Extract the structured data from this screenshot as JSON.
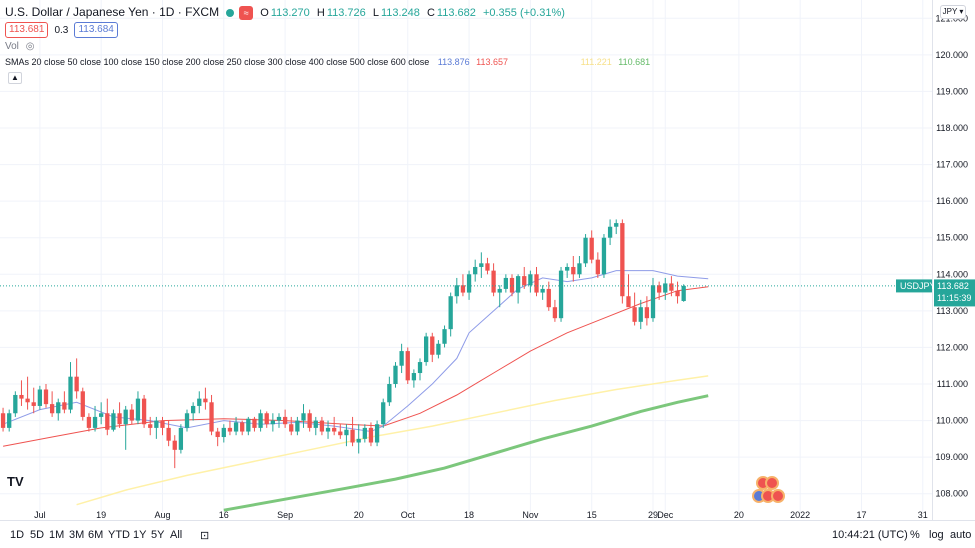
{
  "legend": {
    "symbol_title": "U.S. Dollar / Japanese Yen · 1D · FXCM",
    "ohlc": {
      "o_label": "O",
      "o": "113.270",
      "h_label": "H",
      "h": "113.726",
      "l_label": "L",
      "l": "113.248",
      "c_label": "C",
      "c": "113.682",
      "change": "+0.355 (+0.31%)"
    },
    "bid": "113.681",
    "spread": "0.3",
    "ask": "113.684",
    "vol_label": "Vol",
    "sma_label": "SMAs 20 close 50 close 100 close 150 close 200 close 250 close 300 close 400 close 500 close 600 close",
    "sma_values": [
      {
        "value": "113.876",
        "color": "#5b7bd5"
      },
      {
        "value": "113.657",
        "color": "#ef5350"
      },
      {
        "value": "111.221",
        "color": "#f7e08a"
      },
      {
        "value": "110.681",
        "color": "#66bb6a"
      }
    ]
  },
  "currency_button": "JPY",
  "last_price_tag": {
    "symbol": "USDJPY",
    "price": "113.682",
    "countdown": "11:15:39"
  },
  "toolbar": {
    "timeframes": [
      "1D",
      "5D",
      "1M",
      "3M",
      "6M",
      "YTD",
      "1Y",
      "5Y",
      "All"
    ],
    "clock": "10:44:21 (UTC)",
    "percent": "%",
    "log": "log",
    "auto": "auto"
  },
  "colors": {
    "up": "#26a69a",
    "down": "#ef5350",
    "sma20": "#8f9ce8",
    "sma50": "#ef5350",
    "sma100": "#fff1a8",
    "sma200": "#7cc77c"
  },
  "chart_data": {
    "type": "candlestick",
    "symbol": "USDJPY",
    "ylim": [
      107.5,
      121.5
    ],
    "y_ticks": [
      "108.000",
      "109.000",
      "110.000",
      "111.000",
      "112.000",
      "113.000",
      "114.000",
      "115.000",
      "116.000",
      "117.000",
      "118.000",
      "119.000",
      "120.000",
      "121.000"
    ],
    "x_tick_labels": [
      {
        "label": "Jul",
        "bar": 6
      },
      {
        "label": "19",
        "bar": 16
      },
      {
        "label": "Aug",
        "bar": 26
      },
      {
        "label": "16",
        "bar": 36
      },
      {
        "label": "Sep",
        "bar": 46
      },
      {
        "label": "20",
        "bar": 58
      },
      {
        "label": "Oct",
        "bar": 66
      },
      {
        "label": "18",
        "bar": 76
      },
      {
        "label": "Nov",
        "bar": 86
      },
      {
        "label": "15",
        "bar": 96
      },
      {
        "label": "29",
        "bar": 106
      },
      {
        "label": "Dec",
        "bar": 108
      },
      {
        "label": "20",
        "bar": 120
      },
      {
        "label": "2022",
        "bar": 130
      },
      {
        "label": "17",
        "bar": 140
      },
      {
        "label": "31",
        "bar": 150
      }
    ],
    "total_slots": 152,
    "last_price": 113.682,
    "candles": [
      [
        110.2,
        110.35,
        109.7,
        109.8
      ],
      [
        109.8,
        110.3,
        109.7,
        110.2
      ],
      [
        110.2,
        110.8,
        110.1,
        110.7
      ],
      [
        110.7,
        111.1,
        110.4,
        110.6
      ],
      [
        110.6,
        111.2,
        110.3,
        110.5
      ],
      [
        110.5,
        110.9,
        110.2,
        110.4
      ],
      [
        110.4,
        110.95,
        110.3,
        110.85
      ],
      [
        110.85,
        111.0,
        110.35,
        110.45
      ],
      [
        110.45,
        110.8,
        110.1,
        110.2
      ],
      [
        110.2,
        110.6,
        110.0,
        110.5
      ],
      [
        110.5,
        110.8,
        110.2,
        110.3
      ],
      [
        110.3,
        111.6,
        110.2,
        111.2
      ],
      [
        111.2,
        111.7,
        110.6,
        110.8
      ],
      [
        110.8,
        110.9,
        110.0,
        110.1
      ],
      [
        110.1,
        110.2,
        109.7,
        109.8
      ],
      [
        109.8,
        110.4,
        109.7,
        110.1
      ],
      [
        110.1,
        110.5,
        109.9,
        110.2
      ],
      [
        110.2,
        110.6,
        109.6,
        109.75
      ],
      [
        109.75,
        110.3,
        109.7,
        110.2
      ],
      [
        110.2,
        110.5,
        109.8,
        109.9
      ],
      [
        109.9,
        110.4,
        109.2,
        110.3
      ],
      [
        110.3,
        110.45,
        109.9,
        110.0
      ],
      [
        110.0,
        110.8,
        109.9,
        110.6
      ],
      [
        110.6,
        110.7,
        109.8,
        109.9
      ],
      [
        109.9,
        110.1,
        109.6,
        109.8
      ],
      [
        109.8,
        110.1,
        109.5,
        110.0
      ],
      [
        110.0,
        110.1,
        109.6,
        109.8
      ],
      [
        109.8,
        110.0,
        109.3,
        109.45
      ],
      [
        109.45,
        109.6,
        108.7,
        109.2
      ],
      [
        109.2,
        109.9,
        109.1,
        109.8
      ],
      [
        109.8,
        110.3,
        109.7,
        110.2
      ],
      [
        110.2,
        110.5,
        110.0,
        110.4
      ],
      [
        110.4,
        110.8,
        110.2,
        110.6
      ],
      [
        110.6,
        110.9,
        110.3,
        110.5
      ],
      [
        110.5,
        110.7,
        109.6,
        109.7
      ],
      [
        109.7,
        109.8,
        109.3,
        109.55
      ],
      [
        109.55,
        109.9,
        109.4,
        109.8
      ],
      [
        109.8,
        110.0,
        109.6,
        109.7
      ],
      [
        109.7,
        110.1,
        109.6,
        109.95
      ],
      [
        109.95,
        110.0,
        109.6,
        109.7
      ],
      [
        109.7,
        110.1,
        109.6,
        110.05
      ],
      [
        110.05,
        110.1,
        109.7,
        109.8
      ],
      [
        109.8,
        110.3,
        109.7,
        110.2
      ],
      [
        110.2,
        110.25,
        109.8,
        109.9
      ],
      [
        109.9,
        110.2,
        109.7,
        110.0
      ],
      [
        110.0,
        110.2,
        109.8,
        110.1
      ],
      [
        110.1,
        110.3,
        109.8,
        109.9
      ],
      [
        109.9,
        110.1,
        109.6,
        109.7
      ],
      [
        109.7,
        110.1,
        109.6,
        110.0
      ],
      [
        110.0,
        110.45,
        109.8,
        110.2
      ],
      [
        110.2,
        110.3,
        109.7,
        109.8
      ],
      [
        109.8,
        110.1,
        109.6,
        110.0
      ],
      [
        110.0,
        110.1,
        109.6,
        109.7
      ],
      [
        109.7,
        110.0,
        109.5,
        109.8
      ],
      [
        109.8,
        110.1,
        109.6,
        109.7
      ],
      [
        109.7,
        109.9,
        109.5,
        109.6
      ],
      [
        109.6,
        109.9,
        109.3,
        109.75
      ],
      [
        109.75,
        110.1,
        109.3,
        109.4
      ],
      [
        109.4,
        109.9,
        109.1,
        109.5
      ],
      [
        109.5,
        109.9,
        109.4,
        109.8
      ],
      [
        109.8,
        109.95,
        109.3,
        109.4
      ],
      [
        109.4,
        110.0,
        109.3,
        109.9
      ],
      [
        109.9,
        110.6,
        109.8,
        110.5
      ],
      [
        110.5,
        111.2,
        110.4,
        111.0
      ],
      [
        111.0,
        111.6,
        110.9,
        111.5
      ],
      [
        111.5,
        112.1,
        111.3,
        111.9
      ],
      [
        111.9,
        112.0,
        111.0,
        111.1
      ],
      [
        111.1,
        111.4,
        110.9,
        111.3
      ],
      [
        111.3,
        111.7,
        111.1,
        111.6
      ],
      [
        111.6,
        112.4,
        111.5,
        112.3
      ],
      [
        112.3,
        112.4,
        111.6,
        111.8
      ],
      [
        111.8,
        112.2,
        111.7,
        112.1
      ],
      [
        112.1,
        112.6,
        112.0,
        112.5
      ],
      [
        112.5,
        113.5,
        112.3,
        113.4
      ],
      [
        113.4,
        113.9,
        113.2,
        113.7
      ],
      [
        113.7,
        114.0,
        113.4,
        113.5
      ],
      [
        113.5,
        114.1,
        113.3,
        114.0
      ],
      [
        114.0,
        114.4,
        113.8,
        114.2
      ],
      [
        114.2,
        114.6,
        113.9,
        114.3
      ],
      [
        114.3,
        114.45,
        114.0,
        114.1
      ],
      [
        114.1,
        114.3,
        113.4,
        113.5
      ],
      [
        113.5,
        113.7,
        113.1,
        113.6
      ],
      [
        113.6,
        114.0,
        113.5,
        113.9
      ],
      [
        113.9,
        114.0,
        113.4,
        113.5
      ],
      [
        113.5,
        114.0,
        113.2,
        113.95
      ],
      [
        113.95,
        114.2,
        113.6,
        113.7
      ],
      [
        113.7,
        114.1,
        113.5,
        114.0
      ],
      [
        114.0,
        114.2,
        113.4,
        113.5
      ],
      [
        113.5,
        113.7,
        113.3,
        113.6
      ],
      [
        113.6,
        113.8,
        113.0,
        113.1
      ],
      [
        113.1,
        113.3,
        112.7,
        112.8
      ],
      [
        112.8,
        114.2,
        112.7,
        114.1
      ],
      [
        114.1,
        114.3,
        113.9,
        114.2
      ],
      [
        114.2,
        114.5,
        113.8,
        114.0
      ],
      [
        114.0,
        114.5,
        113.9,
        114.3
      ],
      [
        114.3,
        115.1,
        114.2,
        115.0
      ],
      [
        115.0,
        115.2,
        114.3,
        114.4
      ],
      [
        114.4,
        114.6,
        113.9,
        114.0
      ],
      [
        114.0,
        115.1,
        113.9,
        115.0
      ],
      [
        115.0,
        115.5,
        114.8,
        115.3
      ],
      [
        115.3,
        115.5,
        115.1,
        115.4
      ],
      [
        115.4,
        115.5,
        113.2,
        113.4
      ],
      [
        113.4,
        114.0,
        113.2,
        113.1
      ],
      [
        113.1,
        113.5,
        112.6,
        112.7
      ],
      [
        112.7,
        113.3,
        112.5,
        113.1
      ],
      [
        113.1,
        113.4,
        112.6,
        112.8
      ],
      [
        112.8,
        113.9,
        112.7,
        113.7
      ],
      [
        113.7,
        113.8,
        113.3,
        113.5
      ],
      [
        113.5,
        113.9,
        113.3,
        113.75
      ],
      [
        113.75,
        113.95,
        113.4,
        113.55
      ],
      [
        113.55,
        113.8,
        113.2,
        113.4
      ],
      [
        113.27,
        113.726,
        113.248,
        113.682
      ]
    ],
    "sma20": [
      [
        0,
        109.9
      ],
      [
        6,
        110.3
      ],
      [
        12,
        110.5
      ],
      [
        18,
        110.1
      ],
      [
        24,
        110.0
      ],
      [
        30,
        109.8
      ],
      [
        36,
        110.0
      ],
      [
        42,
        109.9
      ],
      [
        48,
        109.95
      ],
      [
        54,
        109.85
      ],
      [
        60,
        109.7
      ],
      [
        62,
        109.85
      ],
      [
        66,
        110.4
      ],
      [
        70,
        111.0
      ],
      [
        74,
        111.7
      ],
      [
        76,
        112.4
      ],
      [
        80,
        113.0
      ],
      [
        84,
        113.6
      ],
      [
        88,
        113.9
      ],
      [
        92,
        113.8
      ],
      [
        96,
        113.9
      ],
      [
        100,
        114.1
      ],
      [
        104,
        114.1
      ],
      [
        106,
        114.1
      ],
      [
        110,
        113.95
      ],
      [
        115,
        113.876
      ]
    ],
    "sma50": [
      [
        0,
        109.3
      ],
      [
        8,
        109.55
      ],
      [
        16,
        109.8
      ],
      [
        26,
        110.0
      ],
      [
        36,
        110.05
      ],
      [
        46,
        110.0
      ],
      [
        56,
        109.9
      ],
      [
        62,
        109.85
      ],
      [
        68,
        110.2
      ],
      [
        74,
        110.7
      ],
      [
        80,
        111.3
      ],
      [
        86,
        111.9
      ],
      [
        92,
        112.4
      ],
      [
        98,
        112.8
      ],
      [
        104,
        113.2
      ],
      [
        110,
        113.55
      ],
      [
        115,
        113.657
      ]
    ],
    "sma100": [
      [
        12,
        107.7
      ],
      [
        20,
        108.1
      ],
      [
        30,
        108.5
      ],
      [
        40,
        108.85
      ],
      [
        50,
        109.2
      ],
      [
        60,
        109.55
      ],
      [
        70,
        109.85
      ],
      [
        80,
        110.2
      ],
      [
        90,
        110.55
      ],
      [
        100,
        110.85
      ],
      [
        110,
        111.1
      ],
      [
        115,
        111.221
      ]
    ],
    "sma200": [
      [
        36,
        107.55
      ],
      [
        46,
        107.85
      ],
      [
        56,
        108.15
      ],
      [
        64,
        108.4
      ],
      [
        72,
        108.7
      ],
      [
        80,
        109.1
      ],
      [
        88,
        109.5
      ],
      [
        96,
        109.85
      ],
      [
        104,
        110.25
      ],
      [
        110,
        110.5
      ],
      [
        115,
        110.681
      ]
    ]
  }
}
